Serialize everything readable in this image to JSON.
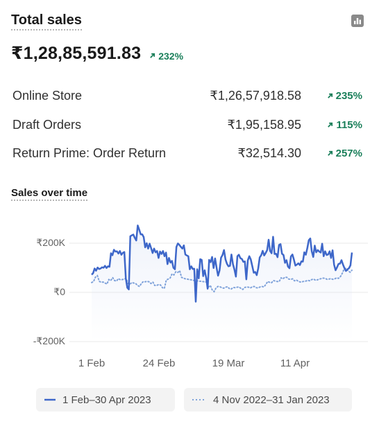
{
  "card": {
    "title": "Total sales",
    "chart_icon": "bar-chart-icon",
    "total_value": "₹1,28,85,591.83",
    "total_change": "232%"
  },
  "breakdown": [
    {
      "name": "Online Store",
      "value": "₹1,26,57,918.58",
      "change": "235%"
    },
    {
      "name": "Draft Orders",
      "value": "₹1,95,158.95",
      "change": "115%"
    },
    {
      "name": "Return Prime: Order Return",
      "value": "₹32,514.30",
      "change": "257%"
    }
  ],
  "colors": {
    "primary": "#3e67c9",
    "comparison": "#7fa2da",
    "positive": "#1a7f5a"
  },
  "chart_data": {
    "type": "line",
    "title": "Sales over time",
    "y_ticks": [
      "₹200K",
      "₹0",
      "-₹200K"
    ],
    "x_ticks": [
      "1 Feb",
      "24 Feb",
      "19 Mar",
      "11 Apr"
    ],
    "ylim": [
      -200000,
      200000
    ],
    "grid": true,
    "legend_position": "bottom",
    "series": [
      {
        "name": "1 Feb–30 Apr 2023",
        "style": "solid",
        "values": [
          72000,
          78000,
          97000,
          88000,
          101000,
          95000,
          97000,
          102000,
          100000,
          108000,
          99000,
          106000,
          104000,
          159000,
          151000,
          173000,
          166000,
          167000,
          158000,
          168000,
          153000,
          161000,
          164000,
          56000,
          19000,
          12000,
          228000,
          232000,
          235000,
          222000,
          211000,
          272000,
          255000,
          236000,
          236000,
          225000,
          183000,
          200000,
          178000,
          198000,
          180000,
          160000,
          178000,
          163000,
          168000,
          140000,
          166000,
          156000,
          168000,
          147000,
          162000,
          115000,
          140000,
          121000,
          128000,
          100000,
          94000,
          185000,
          199000,
          193000,
          185000,
          178000,
          191000,
          154000,
          150000,
          147000,
          94000,
          106000,
          95000,
          96000,
          -38000,
          94000,
          57000,
          135000,
          132000,
          66000,
          90000,
          60000,
          15000,
          132000,
          123000,
          144000,
          99000,
          138000,
          101000,
          68000,
          89000,
          141000,
          152000,
          172000,
          134000,
          116000,
          106000,
          108000,
          154000,
          115000,
          93000,
          64000,
          147000,
          153000,
          139000,
          136000,
          124000,
          126000,
          53000,
          130000,
          147000,
          134000,
          107000,
          80000,
          83000,
          70000,
          98000,
          142000,
          151000,
          169000,
          150000,
          160000,
          172000,
          214000,
          168000,
          159000,
          226000,
          156000,
          157000,
          143000,
          193000,
          196000,
          157000,
          152000,
          120000,
          131000,
          105000,
          98000,
          146000,
          154000,
          133000,
          109000,
          113000,
          118000,
          111000,
          126000,
          125000,
          163000,
          153000,
          180000,
          212000,
          219000,
          167000,
          144000,
          190000,
          163000,
          172000,
          166000,
          162000,
          198000,
          147000,
          167000,
          152000,
          154000,
          167000,
          140000,
          171000,
          113000,
          90000,
          102000,
          116000,
          117000,
          131000,
          113000,
          98000,
          87000,
          94000,
          98000,
          110000,
          162000
        ]
      },
      {
        "name": "4 Nov 2022–31 Jan 2023",
        "style": "dotted",
        "values": [
          40000,
          44000,
          62000,
          68000,
          45000,
          41000,
          42000,
          38000,
          34000,
          52000,
          48000,
          60000,
          48000,
          46000,
          56000,
          51000,
          52000,
          54000,
          57000,
          36000,
          33000,
          40000,
          38000,
          36000,
          28000,
          24000,
          36000,
          44000,
          43000,
          45000,
          43000,
          36000,
          42000,
          28000,
          28000,
          32000,
          30000,
          19000,
          16000,
          50000,
          54000,
          58000,
          75000,
          71000,
          84000,
          81000,
          88000,
          61000,
          58000,
          55000,
          54000,
          52000,
          51000,
          49000,
          48000,
          47000,
          46000,
          45000,
          44000,
          43000,
          42000,
          21000,
          28000,
          10000,
          3000,
          18000,
          24000,
          23000,
          19000,
          17000,
          21000,
          23000,
          15000,
          14000,
          20000,
          19000,
          21000,
          22000,
          16000,
          12000,
          20000,
          22000,
          21000,
          18000,
          23000,
          24000,
          19000,
          18000,
          22000,
          24000,
          22000,
          32000,
          44000,
          41000,
          39000,
          48000,
          46000,
          44000,
          44000,
          59000,
          55000,
          62000,
          61000,
          54000,
          53000,
          55000,
          47000,
          50000,
          45000,
          42000,
          43000,
          45000,
          46000,
          49000,
          47000,
          52000,
          54000,
          49000,
          51000,
          54000,
          56000,
          58000,
          57000,
          53000,
          54000,
          56000,
          53000,
          55000,
          59000,
          57000,
          64000,
          78000,
          96000,
          98000,
          88000,
          82000,
          90000
        ]
      }
    ]
  }
}
